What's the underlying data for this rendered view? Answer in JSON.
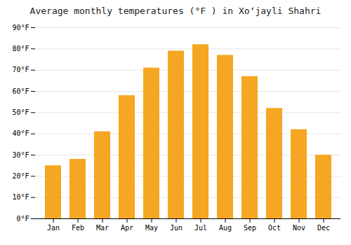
{
  "chart_data": {
    "type": "bar",
    "title": "Average monthly temperatures (°F ) in Xoʻjayli Shahri",
    "categories": [
      "Jan",
      "Feb",
      "Mar",
      "Apr",
      "May",
      "Jun",
      "Jul",
      "Aug",
      "Sep",
      "Oct",
      "Nov",
      "Dec"
    ],
    "values": [
      25,
      28,
      41,
      58,
      71,
      79,
      82,
      77,
      67,
      52,
      42,
      30
    ],
    "color": "#F5A623",
    "ylim": [
      0,
      90
    ],
    "yticks": [
      {
        "value": 0,
        "label": "0°F"
      },
      {
        "value": 10,
        "label": "10°F"
      },
      {
        "value": 20,
        "label": "20°F"
      },
      {
        "value": 30,
        "label": "30°F"
      },
      {
        "value": 40,
        "label": "40°F"
      },
      {
        "value": 50,
        "label": "50°F"
      },
      {
        "value": 60,
        "label": "60°F"
      },
      {
        "value": 70,
        "label": "70°F"
      },
      {
        "value": 80,
        "label": "80°F"
      },
      {
        "value": 90,
        "label": "90°F"
      }
    ],
    "grid": true
  }
}
